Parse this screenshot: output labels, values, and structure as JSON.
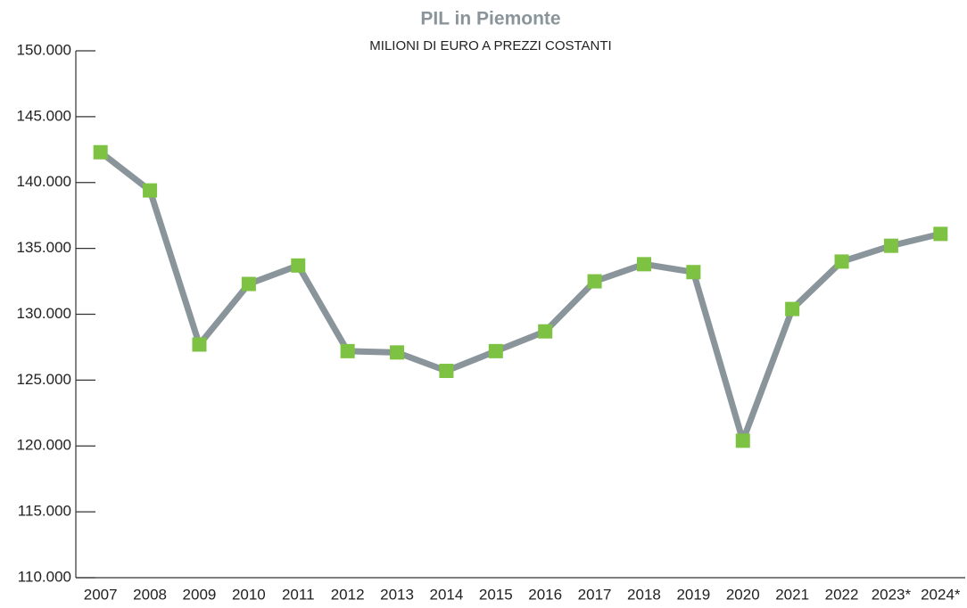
{
  "chart_data": {
    "type": "line",
    "title": "PIL in Piemonte",
    "subtitle": "MILIONI DI EURO A PREZZI COSTANTI",
    "categories": [
      "2007",
      "2008",
      "2009",
      "2010",
      "2011",
      "2012",
      "2013",
      "2014",
      "2015",
      "2016",
      "2017",
      "2018",
      "2019",
      "2020",
      "2021",
      "2022",
      "2023*",
      "2024*"
    ],
    "series": [
      {
        "name": "PIL",
        "color": "#8a959b",
        "marker_color": "#7dc242",
        "values": [
          142300,
          139400,
          127700,
          132300,
          133700,
          127200,
          127100,
          125700,
          127200,
          128700,
          132500,
          133800,
          133200,
          120400,
          130400,
          134000,
          135200,
          136100
        ]
      }
    ],
    "ylim": [
      110000,
      150000
    ],
    "yticks": [
      {
        "value": 110000,
        "label": "110.000"
      },
      {
        "value": 115000,
        "label": "115.000"
      },
      {
        "value": 120000,
        "label": "120.000"
      },
      {
        "value": 125000,
        "label": "125.000"
      },
      {
        "value": 130000,
        "label": "130.000"
      },
      {
        "value": 135000,
        "label": "135.000"
      },
      {
        "value": 140000,
        "label": "140.000"
      },
      {
        "value": 145000,
        "label": "145.000"
      },
      {
        "value": 150000,
        "label": "150.000"
      }
    ],
    "grid": false
  }
}
